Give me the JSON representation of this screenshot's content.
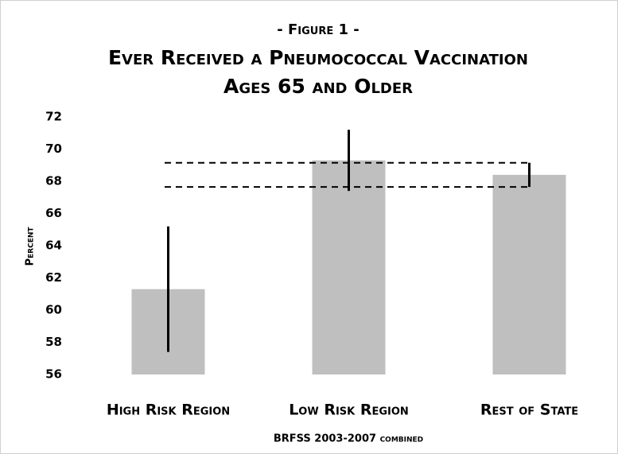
{
  "chart_data": {
    "type": "bar",
    "figure_label": "- Figure 1 -",
    "title": "Ever Received a Pneumococcal Vaccination",
    "subtitle": "Ages 65 and Older",
    "ylabel": "Percent",
    "xlabel": "BRFSS 2003-2007 combined",
    "categories": [
      "High Risk Region",
      "Low Risk Region",
      "Rest of State"
    ],
    "values": [
      61.3,
      69.3,
      68.4
    ],
    "errors": [
      3.9,
      1.9,
      0.75
    ],
    "color": "#bfbfbf",
    "error_color": "#000000",
    "ylim": [
      56,
      72
    ],
    "yticks": [
      56,
      58,
      60,
      62,
      64,
      66,
      68,
      70,
      72
    ],
    "grid": false
  }
}
